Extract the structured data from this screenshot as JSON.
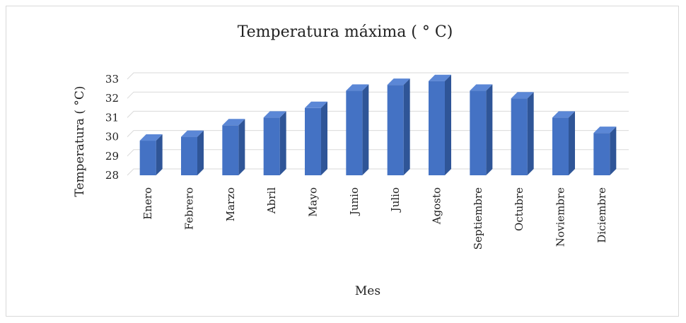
{
  "chart_data": {
    "type": "bar",
    "title": "Temperatura máxima ( ° C)",
    "xlabel": "Mes",
    "ylabel": "Temperatura ( °C)",
    "categories": [
      "Enero",
      "Febrero",
      "Marzo",
      "Abril",
      "Mayo",
      "Junio",
      "Julio",
      "Agosto",
      "Septiembre",
      "Octubre",
      "Noviembre",
      "Diciembre"
    ],
    "values": [
      29.8,
      30.0,
      30.6,
      31.0,
      31.5,
      32.4,
      32.7,
      32.9,
      32.4,
      32.0,
      31.0,
      30.2
    ],
    "ylim": [
      28,
      33
    ],
    "yticks": [
      "28",
      "29",
      "30",
      "31",
      "32",
      "33"
    ],
    "grid": true,
    "legend": "none",
    "colors": {
      "bar_front": "#4472C4",
      "bar_side": "#2F5597",
      "bar_top": "#5B87D6",
      "grid": "#d9d9d9"
    }
  }
}
